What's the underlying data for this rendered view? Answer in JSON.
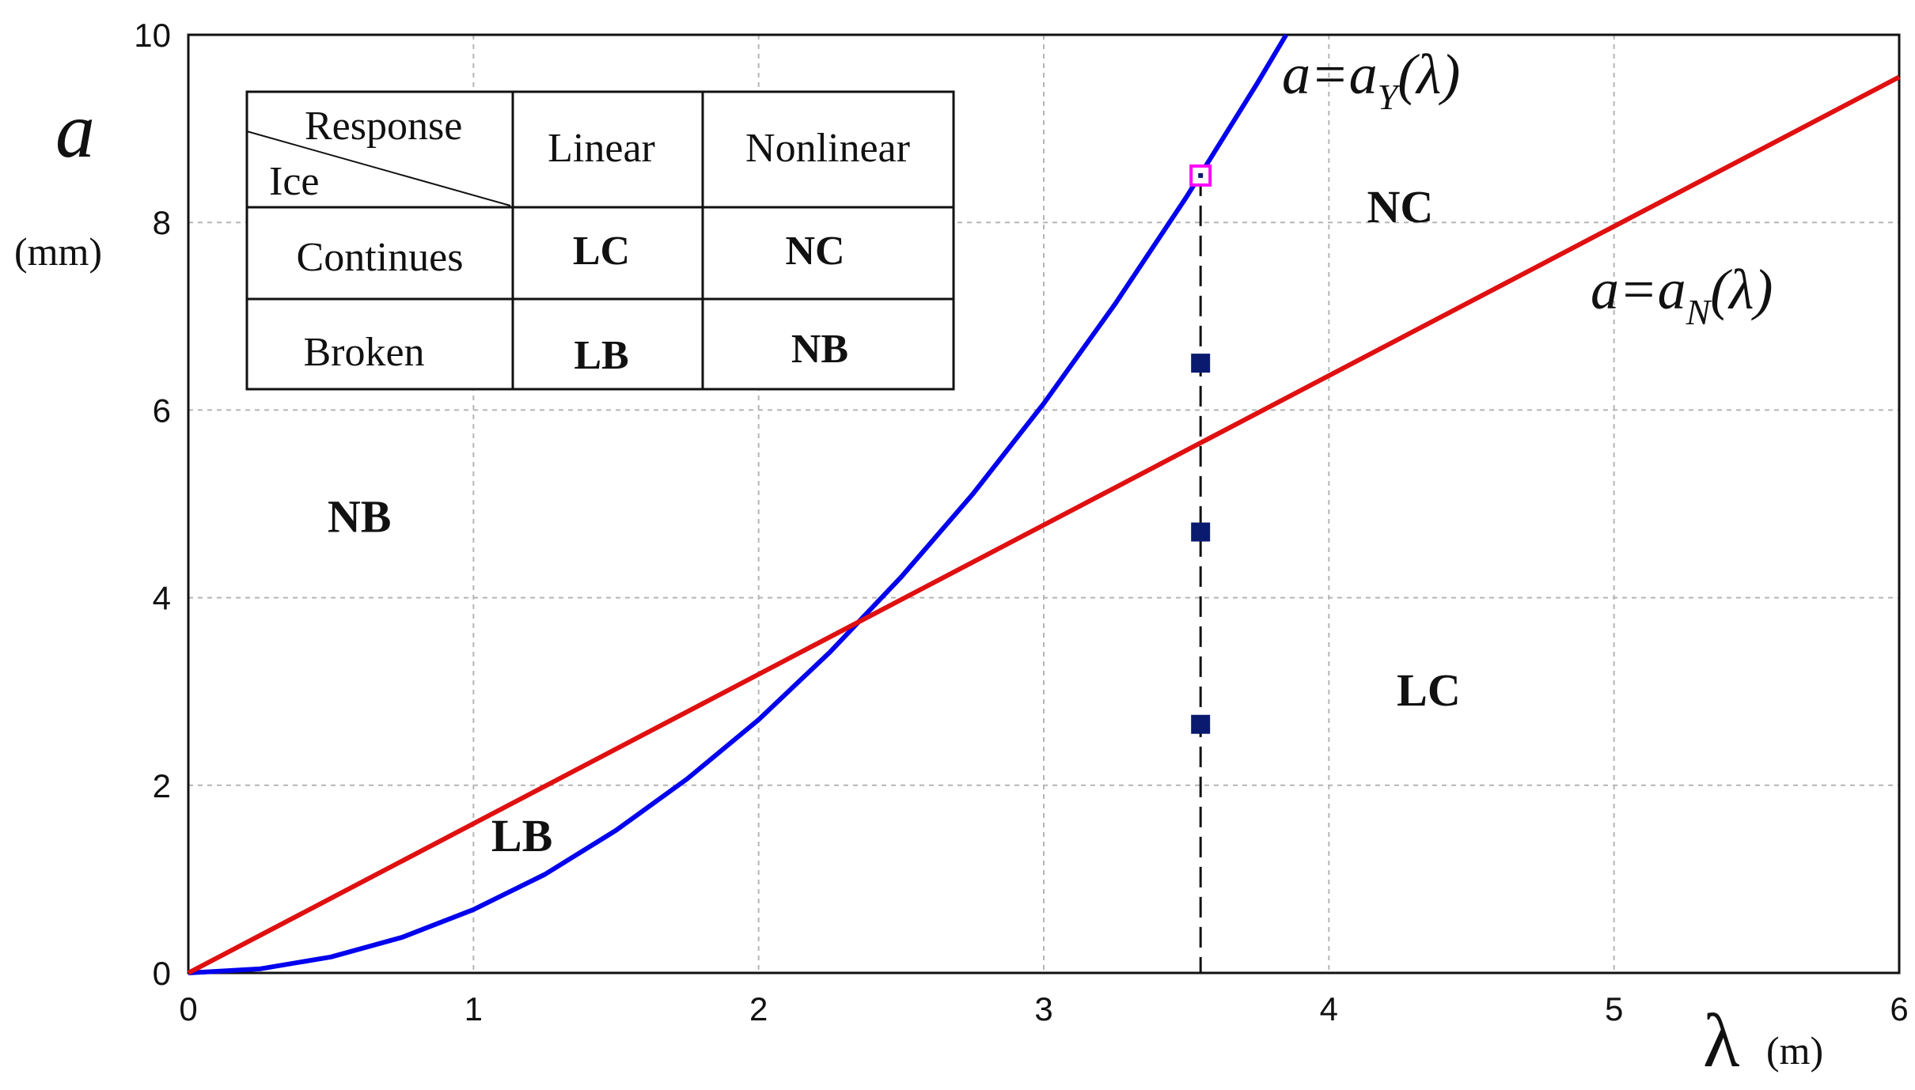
{
  "chart_data": {
    "type": "line",
    "x_axis": {
      "label": "λ",
      "unit": "(m)",
      "range": [
        0,
        6
      ],
      "ticks": [
        "0",
        "1",
        "2",
        "3",
        "4",
        "5",
        "6"
      ]
    },
    "y_axis": {
      "label": "a",
      "unit": "(mm)",
      "range": [
        0,
        10
      ],
      "ticks": [
        "0",
        "2",
        "4",
        "6",
        "8",
        "10"
      ]
    },
    "grid": true,
    "series": [
      {
        "key": "aY",
        "label_lhs": "a=a",
        "label_sub": "Y",
        "label_rhs": "(λ)",
        "color": "#0000ee",
        "x": [
          0,
          0.25,
          0.5,
          0.75,
          1.0,
          1.25,
          1.5,
          1.75,
          2.0,
          2.25,
          2.5,
          2.75,
          3.0,
          3.25,
          3.5,
          3.75,
          3.85
        ],
        "y": [
          0,
          0.043,
          0.17,
          0.38,
          0.675,
          1.05,
          1.52,
          2.07,
          2.7,
          3.42,
          4.22,
          5.1,
          6.07,
          7.13,
          8.27,
          9.49,
          10.0
        ]
      },
      {
        "key": "aN",
        "label_lhs": "a=a",
        "label_sub": "N",
        "label_rhs": "(λ)",
        "color": "#e01010",
        "x": [
          0,
          6
        ],
        "y": [
          0,
          9.55
        ]
      }
    ],
    "markers": [
      {
        "x": 3.55,
        "y": 8.5,
        "style": "hollow",
        "color": "#ff00ff"
      },
      {
        "x": 3.55,
        "y": 6.5,
        "style": "filled",
        "color": "#0a1a6e"
      },
      {
        "x": 3.55,
        "y": 4.7,
        "style": "filled",
        "color": "#0a1a6e"
      },
      {
        "x": 3.55,
        "y": 2.65,
        "style": "filled",
        "color": "#0a1a6e"
      }
    ],
    "vline": {
      "x": 3.55,
      "style": "dashed"
    },
    "regions": [
      {
        "label": "NC",
        "x": 4.25,
        "y": 8.0
      },
      {
        "label": "NB",
        "x": 0.6,
        "y": 4.7
      },
      {
        "label": "LC",
        "x": 4.35,
        "y": 2.85
      },
      {
        "label": "LB",
        "x": 1.17,
        "y": 1.3
      }
    ],
    "legend_table": {
      "header_response": "Response",
      "header_ice": "Ice",
      "col_linear": "Linear",
      "col_nonlinear": "Nonlinear",
      "row_continues": "Continues",
      "row_broken": "Broken",
      "cells": {
        "LC": "LC",
        "NC": "NC",
        "LB": "LB",
        "NB": "NB"
      }
    }
  }
}
